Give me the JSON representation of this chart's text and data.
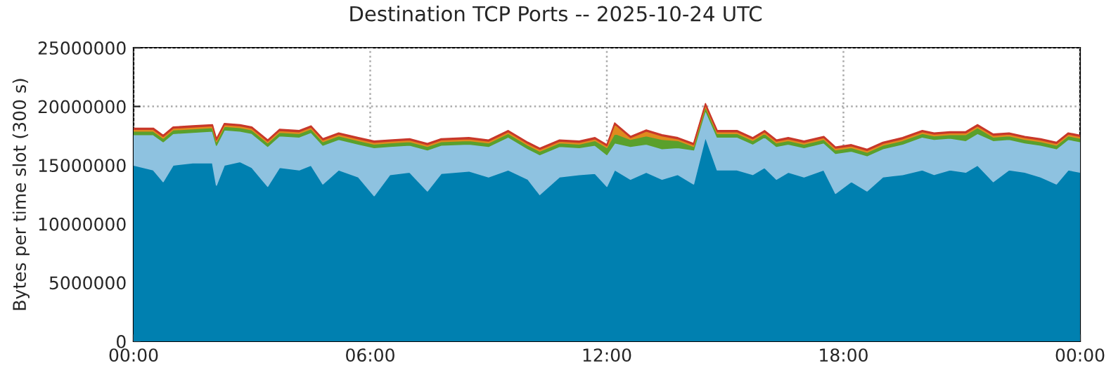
{
  "chart_data": {
    "type": "area",
    "stacked": true,
    "title": "Destination TCP Ports -- 2025-10-24 UTC",
    "ylabel": "Bytes per time slot (300 s)",
    "x": [
      0,
      0.5,
      0.75,
      1,
      1.5,
      2,
      2.1,
      2.3,
      2.7,
      3,
      3.4,
      3.7,
      4.2,
      4.5,
      4.8,
      5.2,
      5.7,
      6.1,
      6.5,
      7,
      7.45,
      7.8,
      8.5,
      9,
      9.5,
      10,
      10.3,
      10.8,
      11.3,
      11.7,
      12,
      12.2,
      12.6,
      13,
      13.4,
      13.8,
      14.2,
      14.5,
      14.8,
      15.3,
      15.7,
      16,
      16.3,
      16.6,
      17,
      17.5,
      17.8,
      18.2,
      18.6,
      19,
      19.5,
      20,
      20.3,
      20.7,
      21.1,
      21.4,
      21.8,
      22.2,
      22.6,
      23,
      23.4,
      23.7,
      24
    ],
    "series": [
      {
        "color": "#0080b0",
        "values": [
          15000000,
          14600000,
          13600000,
          15000000,
          15200000,
          15200000,
          13300000,
          15000000,
          15300000,
          14800000,
          13200000,
          14800000,
          14600000,
          15000000,
          13400000,
          14600000,
          14000000,
          12400000,
          14200000,
          14400000,
          12800000,
          14300000,
          14500000,
          14000000,
          14600000,
          13800000,
          12500000,
          14000000,
          14200000,
          14300000,
          13200000,
          14600000,
          13800000,
          14400000,
          13800000,
          14200000,
          13400000,
          17400000,
          14600000,
          14600000,
          14200000,
          14800000,
          13800000,
          14400000,
          14000000,
          14600000,
          12600000,
          13600000,
          12800000,
          14000000,
          14200000,
          14600000,
          14200000,
          14600000,
          14400000,
          15000000,
          13600000,
          14600000,
          14400000,
          14000000,
          13400000,
          14600000,
          14400000
        ]
      },
      {
        "color": "#8ec2e0",
        "values": [
          2600000,
          3000000,
          3400000,
          2700000,
          2600000,
          2700000,
          3400000,
          3000000,
          2600000,
          2900000,
          3400000,
          2700000,
          2800000,
          2800000,
          3300000,
          2600000,
          2800000,
          4100000,
          2400000,
          2300000,
          3500000,
          2400000,
          2300000,
          2600000,
          2800000,
          2600000,
          3400000,
          2600000,
          2300000,
          2400000,
          2700000,
          2300000,
          2800000,
          2400000,
          2600000,
          2300000,
          2900000,
          2300000,
          2800000,
          2800000,
          2600000,
          2600000,
          2800000,
          2400000,
          2500000,
          2300000,
          3400000,
          2600000,
          3000000,
          2400000,
          2600000,
          2800000,
          3000000,
          2700000,
          2700000,
          2700000,
          3500000,
          2600000,
          2500000,
          2700000,
          3000000,
          2600000,
          2600000
        ]
      },
      {
        "color": "#5aa02c",
        "values": [
          300000,
          300000,
          300000,
          300000,
          300000,
          300000,
          300000,
          300000,
          300000,
          300000,
          300000,
          300000,
          300000,
          300000,
          300000,
          300000,
          300000,
          300000,
          300000,
          300000,
          300000,
          300000,
          300000,
          300000,
          300000,
          300000,
          300000,
          300000,
          300000,
          400000,
          600000,
          800000,
          600000,
          700000,
          800000,
          600000,
          300000,
          300000,
          300000,
          300000,
          300000,
          300000,
          300000,
          300000,
          300000,
          300000,
          300000,
          300000,
          300000,
          300000,
          300000,
          300000,
          300000,
          300000,
          500000,
          500000,
          300000,
          300000,
          300000,
          300000,
          300000,
          300000,
          300000
        ]
      },
      {
        "color": "#e08a1e",
        "values": [
          150000,
          150000,
          150000,
          150000,
          150000,
          150000,
          150000,
          150000,
          150000,
          150000,
          150000,
          150000,
          150000,
          150000,
          150000,
          150000,
          150000,
          150000,
          150000,
          150000,
          150000,
          150000,
          150000,
          150000,
          150000,
          150000,
          150000,
          150000,
          150000,
          150000,
          150000,
          800000,
          150000,
          400000,
          300000,
          150000,
          150000,
          150000,
          150000,
          150000,
          150000,
          150000,
          150000,
          150000,
          150000,
          150000,
          150000,
          150000,
          150000,
          150000,
          150000,
          150000,
          150000,
          150000,
          150000,
          150000,
          150000,
          150000,
          150000,
          150000,
          150000,
          150000,
          150000
        ]
      },
      {
        "color": "#c8382a",
        "values": [
          100000,
          100000,
          100000,
          100000,
          100000,
          100000,
          100000,
          100000,
          100000,
          100000,
          100000,
          100000,
          100000,
          100000,
          100000,
          100000,
          100000,
          100000,
          100000,
          100000,
          100000,
          100000,
          100000,
          100000,
          100000,
          100000,
          100000,
          100000,
          100000,
          100000,
          100000,
          100000,
          100000,
          100000,
          100000,
          100000,
          100000,
          100000,
          100000,
          100000,
          100000,
          100000,
          100000,
          100000,
          100000,
          100000,
          100000,
          100000,
          100000,
          100000,
          100000,
          100000,
          100000,
          100000,
          100000,
          100000,
          100000,
          100000,
          100000,
          100000,
          100000,
          100000,
          100000
        ]
      }
    ],
    "xlim": [
      0,
      24
    ],
    "xticks": [
      {
        "value": 0,
        "label": "00:00"
      },
      {
        "value": 6,
        "label": "06:00"
      },
      {
        "value": 12,
        "label": "12:00"
      },
      {
        "value": 18,
        "label": "18:00"
      },
      {
        "value": 24,
        "label": "00:00"
      }
    ],
    "ylim": [
      0,
      25000000
    ],
    "yticks": [
      0,
      5000000,
      10000000,
      15000000,
      20000000,
      25000000
    ],
    "grid": true,
    "legend": false
  }
}
